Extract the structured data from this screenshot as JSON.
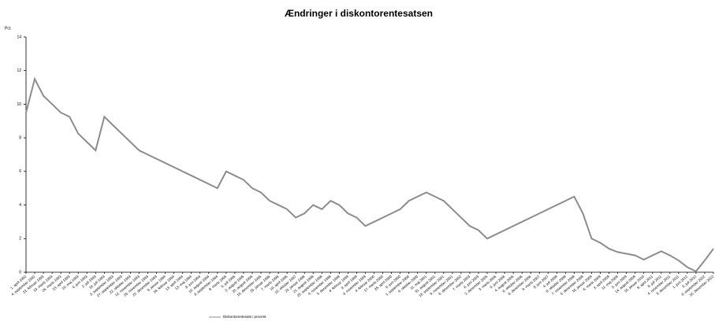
{
  "chart_data": {
    "type": "line",
    "title": "Ændringer i  diskontorentesatsen",
    "y_label": "Pct.",
    "categories": [
      "1. april 1992",
      "4. september 1992",
      "22. februar 1993",
      "19. marts 1993",
      "26. marts 1993",
      "23. april 1993",
      "19. maj 1993",
      "4. juni 1993",
      "2. juli 1993",
      "16. juli 1993",
      "3. september 1993",
      "27. september 1993",
      "22. oktober 1993",
      "12. november 1993",
      "26. november 1993",
      "22. december 1993",
      "6. januar 1994",
      "18. februar 1994",
      "13. april 1994",
      "13. maj 1994",
      "8. juni 1994",
      "10. august 1994",
      "8. september 1994",
      "8. marts 1995",
      "6. juli 1995",
      "3. august 1995",
      "25. august 1995",
      "19. december 1995",
      "25. januar 1996",
      "7. marts 1996",
      "19. april 1996",
      "10. oktober 1997",
      "23. januar 1998",
      "21. august 1998",
      "25. september 1998",
      "4. november 1998",
      "4. december 1998",
      "4. februar 1999",
      "9. april 1999",
      "4. november 1999",
      "4. februar 2000",
      "17. marts 2000",
      "28. april 2000",
      "9. juni 2000",
      "1. september 2000",
      "6. oktober 2000",
      "11. maj 2001",
      "31. august 2001",
      "18. september 2001",
      "9. november 2001",
      "6. december 2002",
      "7. marts 2003",
      "6. juni 2003",
      "2. december 2005",
      "3. marts 2006",
      "9. juni 2006",
      "4. august 2006",
      "6. oktober 2006",
      "8. december 2006",
      "9. marts 2007",
      "8. juni 2007",
      "4. juli 2008",
      "8. oktober 2008",
      "7. november 2008",
      "5. december 2008",
      "16. januar 2009",
      "6. marts 2009",
      "3. april 2009",
      "11. maj 2009",
      "5. juni 2009",
      "14. august 2009",
      "15. januar 2010",
      "8. april 2011",
      "8. juli 2011",
      "4. november 2011",
      "9. december 2011",
      "1. juni 2012",
      "6. juli 2012",
      "8. september 2022",
      "16. december 2022"
    ],
    "series": [
      {
        "name": "Diskontorentesats i procent",
        "color": "#8c8c8c",
        "values": [
          9.5,
          11.5,
          10.5,
          10,
          9.5,
          9.25,
          8.25,
          7.75,
          7.25,
          9.25,
          8.75,
          8.25,
          7.75,
          7.25,
          7,
          6.75,
          6.5,
          6.25,
          6,
          5.75,
          5.5,
          5.25,
          5,
          6,
          5.75,
          5.5,
          5,
          4.75,
          4.25,
          4,
          3.75,
          3.25,
          3.5,
          4,
          3.75,
          4.25,
          4,
          3.5,
          3.25,
          2.75,
          3,
          3.25,
          3.5,
          3.75,
          4.25,
          4.5,
          4.75,
          4.5,
          4.25,
          3.75,
          3.25,
          2.75,
          2.5,
          2,
          2.25,
          2.5,
          2.75,
          3,
          3.25,
          3.5,
          3.75,
          4,
          4.25,
          4.5,
          3.5,
          2,
          1.75,
          1.4,
          1.2,
          1.1,
          1,
          0.75,
          1,
          1.25,
          1,
          0.7,
          0.3,
          0.05,
          0.7,
          1.4
        ]
      }
    ],
    "ylim": [
      0,
      14
    ],
    "yticks": [
      0,
      2,
      4,
      6,
      8,
      10,
      12,
      14
    ]
  }
}
